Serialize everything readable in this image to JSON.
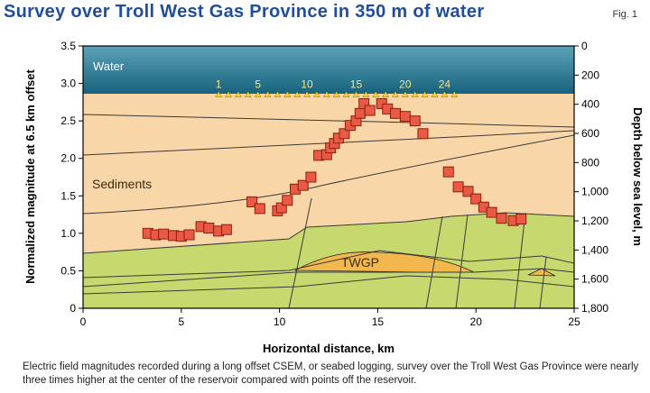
{
  "header": {
    "title": "Survey over Troll West Gas Province in 350 m of water",
    "fig_label": "Fig. 1"
  },
  "caption": "Electric field magnitudes recorded during a long offset CSEM, or seabed logging, survey over the Troll West Gas Province were nearly three times higher at the center of the reservoir compared with points off the reservoir.",
  "chart_data": {
    "type": "scatter",
    "title": "Survey over Troll West Gas Province in 350 m of water",
    "xlabel": "Horizontal distance, km",
    "ylabel": "Normalized magnitude at 6.5 km offset",
    "y2label": "Depth below sea level, m",
    "xlim": [
      0,
      25
    ],
    "ylim": [
      0,
      3.5
    ],
    "y2lim": [
      0,
      1800
    ],
    "x_ticks": [
      "0",
      "5",
      "10",
      "15",
      "20",
      "25"
    ],
    "y_ticks": [
      "0",
      "0.5",
      "1.0",
      "1.5",
      "2.0",
      "2.5",
      "3.0",
      "3.5"
    ],
    "y2_ticks": [
      "0",
      "200",
      "400",
      "600",
      "800",
      "1,000",
      "1,200",
      "1,400",
      "1,600",
      "1,800"
    ],
    "annotations": {
      "water": "Water",
      "sediments": "Sediments",
      "reservoir": "TWGP",
      "receiver_labels": [
        "1",
        "5",
        "10",
        "15",
        "20",
        "24"
      ]
    },
    "receivers_x": [
      6.9,
      7.4,
      7.9,
      8.4,
      8.9,
      9.4,
      9.9,
      10.4,
      10.9,
      11.4,
      11.9,
      12.4,
      12.9,
      13.4,
      13.9,
      14.4,
      14.9,
      15.4,
      15.9,
      16.4,
      16.9,
      17.4,
      17.9,
      18.4,
      18.9
    ],
    "receiver_depth_m": 350,
    "series": [
      {
        "values": [
          [
            3.3,
            1.0
          ],
          [
            3.7,
            0.98
          ],
          [
            4.1,
            0.99
          ],
          [
            4.6,
            0.97
          ],
          [
            5.0,
            0.96
          ],
          [
            5.4,
            0.98
          ],
          [
            6.0,
            1.09
          ],
          [
            6.4,
            1.07
          ],
          [
            6.9,
            1.03
          ],
          [
            7.3,
            1.05
          ],
          [
            8.6,
            1.42
          ],
          [
            9.0,
            1.33
          ],
          [
            9.9,
            1.3
          ],
          [
            10.1,
            1.34
          ],
          [
            10.4,
            1.44
          ],
          [
            10.8,
            1.59
          ],
          [
            11.2,
            1.64
          ],
          [
            11.6,
            1.75
          ],
          [
            12.0,
            2.04
          ],
          [
            12.4,
            2.05
          ],
          [
            12.6,
            2.14
          ],
          [
            12.8,
            2.2
          ],
          [
            13.0,
            2.27
          ],
          [
            13.3,
            2.33
          ],
          [
            13.6,
            2.44
          ],
          [
            13.9,
            2.5
          ],
          [
            14.1,
            2.6
          ],
          [
            14.3,
            2.73
          ],
          [
            14.6,
            2.64
          ],
          [
            15.2,
            2.73
          ],
          [
            15.5,
            2.66
          ],
          [
            15.9,
            2.6
          ],
          [
            16.4,
            2.56
          ],
          [
            16.9,
            2.5
          ],
          [
            17.3,
            2.33
          ],
          [
            18.6,
            1.82
          ],
          [
            19.1,
            1.62
          ],
          [
            19.6,
            1.56
          ],
          [
            20.0,
            1.46
          ],
          [
            20.4,
            1.35
          ],
          [
            20.8,
            1.28
          ],
          [
            21.3,
            1.2
          ],
          [
            21.9,
            1.17
          ],
          [
            22.3,
            1.19
          ]
        ]
      }
    ]
  }
}
